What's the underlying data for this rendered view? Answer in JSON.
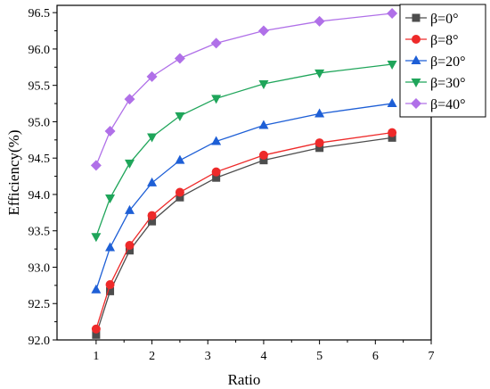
{
  "chart_data": {
    "type": "line",
    "title": "",
    "xlabel": "Ratio",
    "ylabel": "Efficiency(%)",
    "xlim": [
      0.3,
      7
    ],
    "ylim": [
      92.0,
      96.6
    ],
    "xticks": [
      1,
      2,
      3,
      4,
      5,
      6,
      7
    ],
    "yticks": [
      92.0,
      92.5,
      93.0,
      93.5,
      94.0,
      94.5,
      95.0,
      95.5,
      96.0,
      96.5
    ],
    "x": [
      1.0,
      1.25,
      1.6,
      2.0,
      2.5,
      3.15,
      4.0,
      5.0,
      6.3
    ],
    "legend_position": "top-right",
    "grid": false,
    "series": [
      {
        "name": "β=0°",
        "color": "#4d4d4d",
        "marker": "square",
        "values": [
          92.07,
          92.67,
          93.23,
          93.63,
          93.96,
          94.23,
          94.47,
          94.64,
          94.78
        ]
      },
      {
        "name": "β=8°",
        "color": "#ee2a2a",
        "marker": "circle",
        "values": [
          92.15,
          92.76,
          93.3,
          93.71,
          94.03,
          94.31,
          94.54,
          94.71,
          94.85
        ]
      },
      {
        "name": "β=20°",
        "color": "#1e5fd6",
        "marker": "triangle-up",
        "values": [
          92.69,
          93.27,
          93.78,
          94.16,
          94.47,
          94.73,
          94.95,
          95.11,
          95.25
        ]
      },
      {
        "name": "β=30°",
        "color": "#1fa55a",
        "marker": "triangle-down",
        "values": [
          93.42,
          93.95,
          94.43,
          94.79,
          95.08,
          95.32,
          95.52,
          95.67,
          95.79
        ]
      },
      {
        "name": "β=40°",
        "color": "#b070e8",
        "marker": "diamond",
        "values": [
          94.4,
          94.87,
          95.31,
          95.62,
          95.87,
          96.08,
          96.25,
          96.38,
          96.49
        ]
      }
    ]
  }
}
